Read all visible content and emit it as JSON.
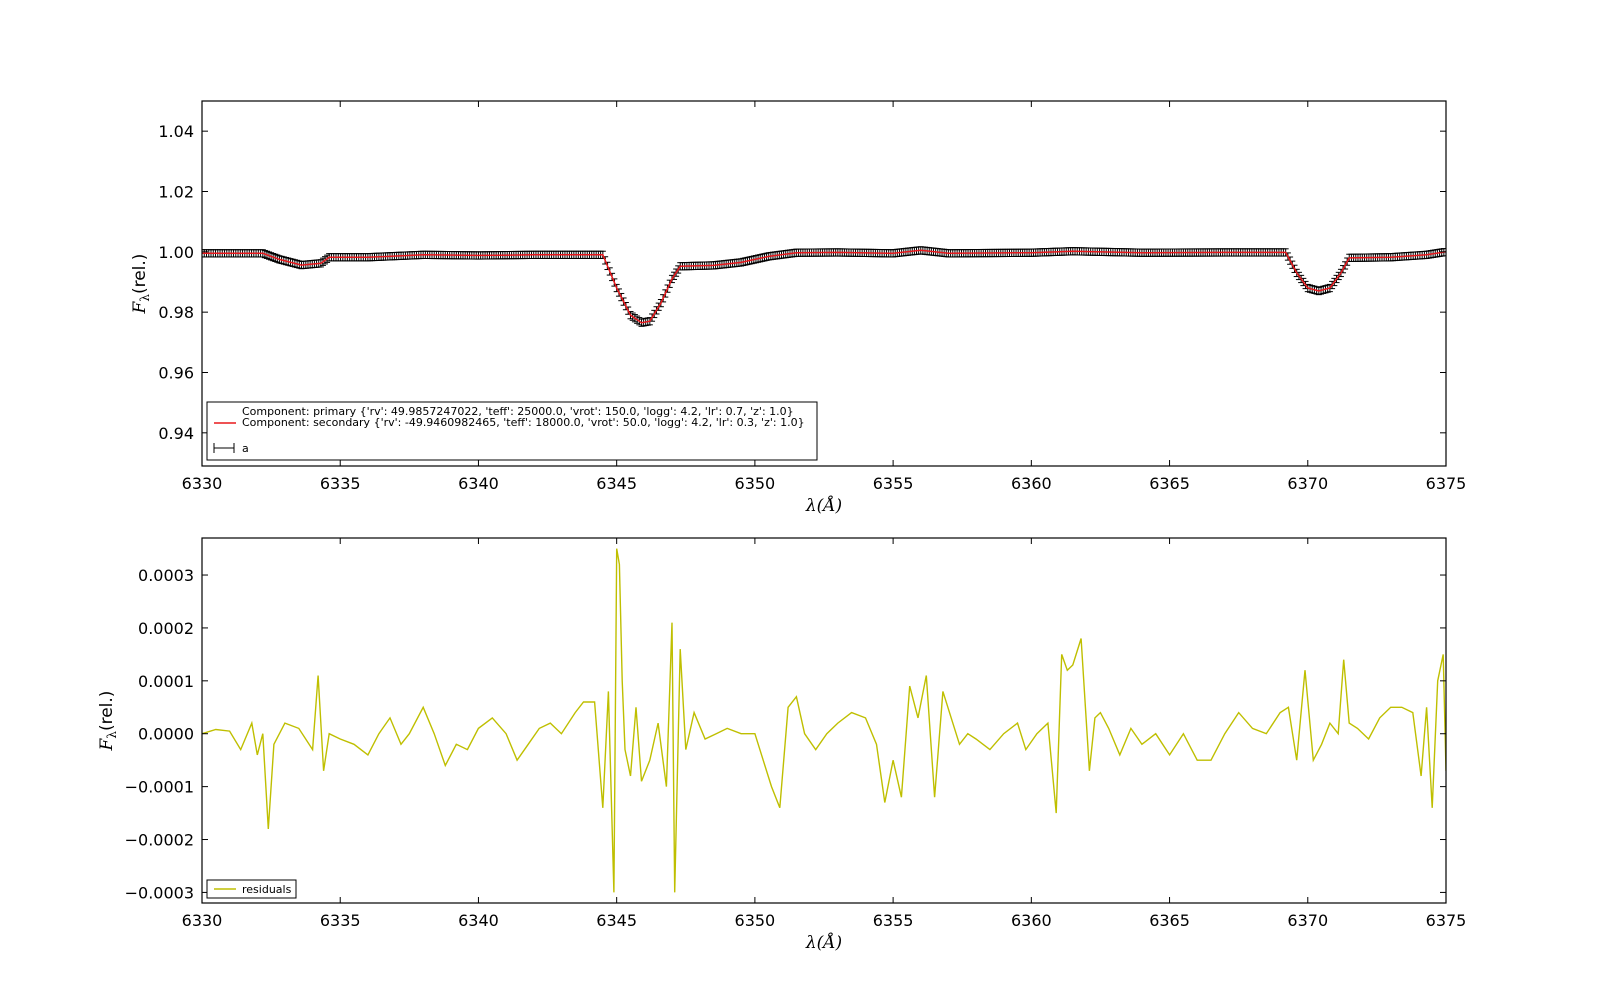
{
  "chart_data": [
    {
      "type": "line",
      "panel": "top",
      "xlabel": "λ(Å)",
      "ylabel": "F_λ(rel.)",
      "xlim": [
        6330,
        6375
      ],
      "ylim": [
        0.929,
        1.05
      ],
      "xticks": [
        6330,
        6335,
        6340,
        6345,
        6350,
        6355,
        6360,
        6365,
        6370,
        6375
      ],
      "yticks": [
        0.94,
        0.96,
        0.98,
        1.0,
        1.02,
        1.04
      ],
      "ytick_labels": [
        "0.94",
        "0.96",
        "0.98",
        "1.00",
        "1.02",
        "1.04"
      ],
      "grid": false,
      "legend_placement": "lower-left",
      "series": [
        {
          "name": "Component: primary {'rv': 49.9857247022, 'teff': 25000.0, 'vrot': 150.0, 'logg': 4.2, 'lr': 0.7, 'z': 1.0}\nComponent: secondary {'rv': -49.9460982465, 'teff': 18000.0, 'vrot': 50.0, 'logg': 4.2, 'lr': 0.3, 'z': 1.0}",
          "legend_lines": [
            "Component: primary {'rv': 49.9857247022, 'teff': 25000.0, 'vrot': 150.0, 'logg': 4.2, 'lr': 0.7, 'z': 1.0}",
            "Component: secondary {'rv': -49.9460982465, 'teff': 18000.0, 'vrot': 50.0, 'logg': 4.2, 'lr': 0.3, 'z': 1.0}"
          ],
          "style": "line",
          "color": "#e8181c",
          "x": [
            6330,
            6332.2,
            6332.8,
            6333.6,
            6334.3,
            6334.6,
            6336,
            6338,
            6340,
            6342,
            6344.5,
            6345.0,
            6345.5,
            6345.9,
            6346.2,
            6346.6,
            6347.0,
            6347.3,
            6348.5,
            6349.5,
            6350.5,
            6351.5,
            6353,
            6355,
            6356,
            6357,
            6360,
            6361.5,
            6364,
            6367,
            6369.2,
            6369.6,
            6370.0,
            6370.4,
            6370.8,
            6371.2,
            6371.5,
            6373,
            6374.3,
            6375
          ],
          "y": [
            0.9995,
            0.9995,
            0.9975,
            0.9956,
            0.9962,
            0.9982,
            0.9982,
            0.999,
            0.9988,
            0.999,
            0.999,
            0.988,
            0.979,
            0.9765,
            0.977,
            0.983,
            0.991,
            0.9952,
            0.9955,
            0.9965,
            0.9985,
            0.9997,
            0.9998,
            0.9995,
            1.0005,
            0.9995,
            0.9997,
            1.0002,
            0.9997,
            0.9998,
            0.9998,
            0.993,
            0.988,
            0.987,
            0.988,
            0.993,
            0.998,
            0.9982,
            0.999,
            1.0
          ]
        },
        {
          "name": "a",
          "style": "errorbar",
          "color": "#000000",
          "x": [
            6330,
            6332.2,
            6332.8,
            6333.6,
            6334.3,
            6334.6,
            6336,
            6338,
            6340,
            6342,
            6344.5,
            6345.0,
            6345.5,
            6345.9,
            6346.2,
            6346.6,
            6347.0,
            6347.3,
            6348.5,
            6349.5,
            6350.5,
            6351.5,
            6353,
            6355,
            6356,
            6357,
            6360,
            6361.5,
            6364,
            6367,
            6369.2,
            6369.6,
            6370.0,
            6370.4,
            6370.8,
            6371.2,
            6371.5,
            6373,
            6374.3,
            6375
          ],
          "y": [
            0.9995,
            0.9995,
            0.9975,
            0.9956,
            0.9962,
            0.9982,
            0.9982,
            0.999,
            0.9988,
            0.999,
            0.999,
            0.988,
            0.979,
            0.9765,
            0.977,
            0.983,
            0.991,
            0.9952,
            0.9955,
            0.9965,
            0.9985,
            0.9997,
            0.9998,
            0.9995,
            1.0005,
            0.9995,
            0.9997,
            1.0002,
            0.9997,
            0.9998,
            0.9998,
            0.993,
            0.988,
            0.987,
            0.988,
            0.993,
            0.998,
            0.9982,
            0.999,
            1.0
          ],
          "yerr": 0.0012
        }
      ]
    },
    {
      "type": "line",
      "panel": "bottom",
      "xlabel": "λ(Å)",
      "ylabel": "F_λ(rel.)",
      "xlim": [
        6330,
        6375
      ],
      "ylim": [
        -0.00032,
        0.00037
      ],
      "xticks": [
        6330,
        6335,
        6340,
        6345,
        6350,
        6355,
        6360,
        6365,
        6370,
        6375
      ],
      "yticks": [
        -0.0003,
        -0.0002,
        -0.0001,
        0.0,
        0.0001,
        0.0002,
        0.0003
      ],
      "ytick_labels": [
        "−0.0003",
        "−0.0002",
        "−0.0001",
        "0.0000",
        "0.0001",
        "0.0002",
        "0.0003"
      ],
      "grid": false,
      "legend_placement": "lower-left",
      "series": [
        {
          "name": "residuals",
          "color": "#bfbf00",
          "x": [
            6330,
            6330.5,
            6331,
            6331.4,
            6331.8,
            6332.0,
            6332.2,
            6332.4,
            6332.6,
            6333,
            6333.5,
            6334,
            6334.2,
            6334.4,
            6334.6,
            6335,
            6335.5,
            6336,
            6336.4,
            6336.8,
            6337.2,
            6337.5,
            6338,
            6338.4,
            6338.8,
            6339.2,
            6339.6,
            6340,
            6340.5,
            6341,
            6341.4,
            6341.8,
            6342.2,
            6342.6,
            6343,
            6343.5,
            6343.8,
            6344.2,
            6344.5,
            6344.7,
            6344.9,
            6345.0,
            6345.1,
            6345.2,
            6345.3,
            6345.5,
            6345.7,
            6345.9,
            6346.2,
            6346.5,
            6346.8,
            6347.0,
            6347.1,
            6347.3,
            6347.5,
            6347.8,
            6348.2,
            6348.6,
            6349,
            6349.5,
            6350,
            6350.3,
            6350.6,
            6350.9,
            6351.2,
            6351.5,
            6351.8,
            6352.2,
            6352.6,
            6353,
            6353.5,
            6354,
            6354.4,
            6354.7,
            6355,
            6355.3,
            6355.6,
            6355.9,
            6356.2,
            6356.5,
            6356.8,
            6357.1,
            6357.4,
            6357.7,
            6358,
            6358.5,
            6359,
            6359.5,
            6359.8,
            6360.2,
            6360.6,
            6360.9,
            6361.1,
            6361.3,
            6361.5,
            6361.8,
            6362.1,
            6362.3,
            6362.5,
            6362.8,
            6363.2,
            6363.6,
            6364,
            6364.5,
            6365,
            6365.5,
            6366,
            6366.5,
            6367,
            6367.5,
            6368,
            6368.5,
            6369,
            6369.3,
            6369.6,
            6369.9,
            6370.2,
            6370.5,
            6370.8,
            6371.1,
            6371.3,
            6371.5,
            6371.8,
            6372.2,
            6372.6,
            6373,
            6373.4,
            6373.8,
            6374.1,
            6374.3,
            6374.5,
            6374.7,
            6374.9,
            6375
          ],
          "y": [
            0.0,
            8e-06,
            5e-06,
            -3e-05,
            2e-05,
            -4e-05,
            0.0,
            -0.00018,
            -2e-05,
            2e-05,
            1e-05,
            -3e-05,
            0.00011,
            -7e-05,
            0.0,
            -1e-05,
            -2e-05,
            -4e-05,
            0.0,
            3e-05,
            -2e-05,
            0.0,
            5e-05,
            0.0,
            -6e-05,
            -2e-05,
            -3e-05,
            1e-05,
            3e-05,
            0.0,
            -5e-05,
            -2e-05,
            1e-05,
            2e-05,
            0.0,
            4e-05,
            6e-05,
            6e-05,
            -0.00014,
            8e-05,
            -0.0003,
            0.00035,
            0.00032,
            0.0001,
            -3e-05,
            -8e-05,
            5e-05,
            -9e-05,
            -5e-05,
            2e-05,
            -0.0001,
            0.00021,
            -0.0003,
            0.00016,
            -3e-05,
            4e-05,
            -1e-05,
            0.0,
            1e-05,
            0.0,
            0.0,
            -5e-05,
            -0.0001,
            -0.00014,
            5e-05,
            7e-05,
            0.0,
            -3e-05,
            0.0,
            2e-05,
            4e-05,
            3e-05,
            -2e-05,
            -0.00013,
            -5e-05,
            -0.00012,
            9e-05,
            3e-05,
            0.00011,
            -0.00012,
            8e-05,
            3e-05,
            -2e-05,
            0.0,
            -1e-05,
            -3e-05,
            0.0,
            2e-05,
            -3e-05,
            0.0,
            2e-05,
            -0.00015,
            0.00015,
            0.00012,
            0.00013,
            0.00018,
            -7e-05,
            3e-05,
            4e-05,
            1e-05,
            -4e-05,
            1e-05,
            -2e-05,
            0.0,
            -4e-05,
            0.0,
            -5e-05,
            -5e-05,
            0.0,
            4e-05,
            1e-05,
            0.0,
            4e-05,
            5e-05,
            -5e-05,
            0.00012,
            -5e-05,
            -2e-05,
            2e-05,
            0.0,
            0.00014,
            2e-05,
            1e-05,
            -1e-05,
            3e-05,
            5e-05,
            5e-05,
            4e-05,
            -8e-05,
            5e-05,
            -0.00014,
            0.0001,
            0.00015,
            -7e-05
          ]
        }
      ]
    }
  ]
}
